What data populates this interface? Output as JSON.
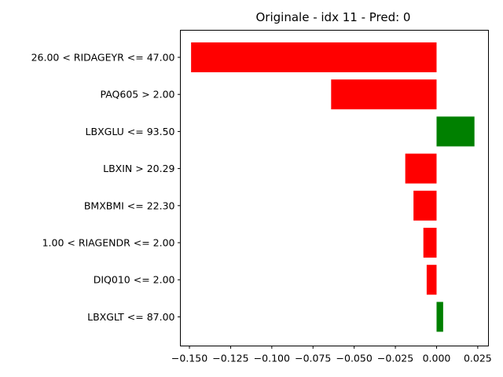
{
  "chart_data": {
    "type": "bar",
    "orientation": "horizontal",
    "title": "Originale - idx 11 - Pred: 0",
    "xlabel": "",
    "ylabel": "",
    "xlim": [
      -0.1555,
      0.0315
    ],
    "xticks": [
      -0.15,
      -0.125,
      -0.1,
      -0.075,
      -0.05,
      -0.025,
      0.0,
      0.025
    ],
    "xtick_labels": [
      "−0.150",
      "−0.125",
      "−0.100",
      "−0.075",
      "−0.050",
      "−0.025",
      "0.000",
      "0.025"
    ],
    "categories": [
      "26.00 < RIDAGEYR <= 47.00",
      "PAQ605 > 2.00",
      "LBXGLU <= 93.50",
      "LBXIN > 20.29",
      "BMXBMI <= 22.30",
      "1.00 < RIAGENDR <= 2.00",
      "DIQ010 <= 2.00",
      "LBXGLT <= 87.00"
    ],
    "values": [
      -0.149,
      -0.064,
      0.023,
      -0.019,
      -0.014,
      -0.008,
      -0.006,
      0.004
    ],
    "colors": {
      "negative": "#ff0000",
      "positive": "#008000"
    },
    "grid": false,
    "legend": "none"
  }
}
